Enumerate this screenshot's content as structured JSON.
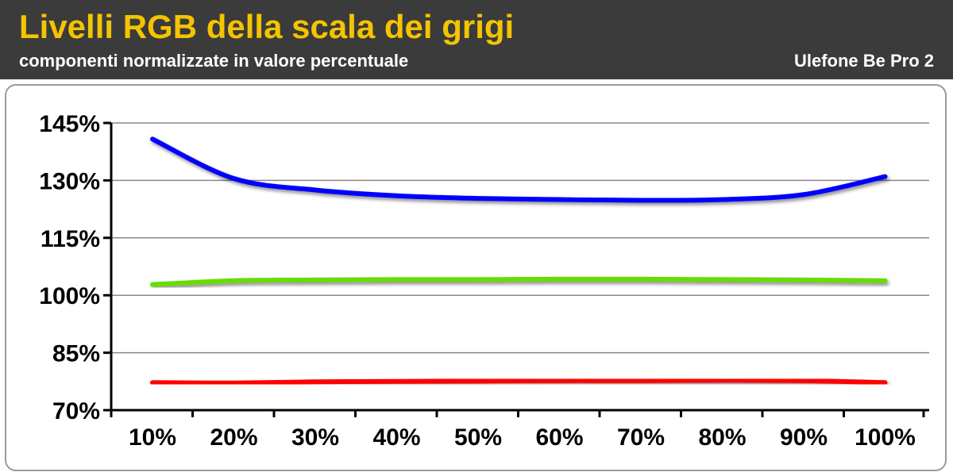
{
  "header": {
    "title": "Livelli RGB della scala dei grigi",
    "subtitle": "componenti normalizzate in valore percentuale",
    "device": "Ulefone Be Pro 2"
  },
  "colors": {
    "header_bg": "#3b3b3b",
    "title": "#f5c400",
    "red": "#ff0000",
    "green": "#66dd00",
    "blue": "#0000ff",
    "grid": "#888888"
  },
  "chart_data": {
    "type": "line",
    "title": "Livelli RGB della scala dei grigi",
    "subtitle": "componenti normalizzate in valore percentuale",
    "xlabel": "",
    "ylabel": "",
    "categories": [
      "10%",
      "20%",
      "30%",
      "40%",
      "50%",
      "60%",
      "70%",
      "80%",
      "90%",
      "100%"
    ],
    "yticks": [
      "70%",
      "85%",
      "100%",
      "115%",
      "130%",
      "145%"
    ],
    "ytick_values": [
      70,
      85,
      100,
      115,
      130,
      145
    ],
    "ylim": [
      70,
      145
    ],
    "grid": true,
    "legend": "none",
    "series": [
      {
        "color": "#0000ff",
        "values": [
          140.8,
          130.5,
          127.5,
          126.0,
          125.3,
          125.0,
          124.8,
          125.0,
          126.3,
          131.0
        ]
      },
      {
        "color": "#66dd00",
        "values": [
          102.8,
          103.8,
          104.0,
          104.1,
          104.1,
          104.2,
          104.2,
          104.1,
          104.0,
          103.8
        ]
      },
      {
        "color": "#ff0000",
        "values": [
          77.2,
          77.1,
          77.4,
          77.5,
          77.6,
          77.7,
          77.7,
          77.8,
          77.7,
          77.2
        ]
      }
    ]
  }
}
